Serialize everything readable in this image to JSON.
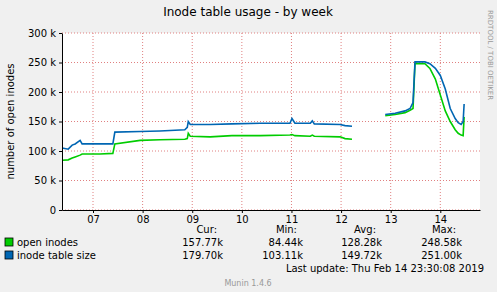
{
  "chart_data": {
    "type": "line",
    "title": "Inode table usage - by week",
    "y_label": "number of open inodes",
    "x": [
      6.38,
      6.5,
      6.58,
      6.64,
      6.74,
      6.78,
      7.14,
      7.4,
      7.44,
      7.95,
      8.35,
      8.85,
      8.9,
      8.92,
      8.96,
      9.36,
      9.8,
      10.37,
      10.97,
      11.01,
      11.07,
      11.38,
      11.42,
      11.46,
      11.98,
      12.08,
      12.22,
      12.5,
      12.89,
      13.09,
      13.29,
      13.39,
      13.45,
      13.49,
      13.69,
      13.79,
      13.9,
      14.0,
      14.1,
      14.2,
      14.3,
      14.36,
      14.42,
      14.46,
      14.48
    ],
    "xlim": [
      6.375,
      14.8
    ],
    "xticks": [
      {
        "value": 7,
        "label": "07"
      },
      {
        "value": 8,
        "label": "08"
      },
      {
        "value": 9,
        "label": "09"
      },
      10,
      11,
      12,
      13,
      14
    ],
    "ylim": [
      0,
      300000
    ],
    "yticks": [
      0,
      {
        "value": 50000,
        "label": "50 k"
      },
      {
        "value": 100000,
        "label": "100 k"
      },
      {
        "value": 150000,
        "label": "150 k"
      },
      {
        "value": 200000,
        "label": "200 k"
      },
      {
        "value": 250000,
        "label": "250 k"
      },
      {
        "value": 300000,
        "label": "300 k"
      }
    ],
    "grid": true,
    "legend": "bottom",
    "stat_columns": [
      "Cur:",
      "Min:",
      "Avg:",
      "Max:"
    ],
    "series": [
      {
        "name": "open inodes",
        "color": "#00cc00",
        "values": [
          84440,
          85000,
          88000,
          90000,
          93000,
          95000,
          95000,
          96000,
          112000,
          118000,
          119000,
          120000,
          121000,
          130000,
          125000,
          124000,
          126000,
          126000,
          127000,
          128000,
          126000,
          125000,
          127000,
          125000,
          124000,
          121000,
          120000,
          null,
          160000,
          162000,
          165000,
          169000,
          172000,
          248580,
          248000,
          240000,
          222000,
          195000,
          168000,
          150000,
          136000,
          130000,
          127000,
          126000,
          157770
        ],
        "stats": [
          "157.77k",
          "84.44k",
          "128.28k",
          "248.58k"
        ]
      },
      {
        "name": "inode table size",
        "color": "#0066b3",
        "values": [
          105000,
          103110,
          110000,
          112000,
          118000,
          112000,
          112000,
          112000,
          132000,
          133000,
          134000,
          136000,
          140000,
          150000,
          145000,
          145000,
          146000,
          147000,
          147000,
          155000,
          147000,
          147000,
          151000,
          146000,
          145000,
          143000,
          142000,
          null,
          162000,
          164000,
          168000,
          172000,
          182000,
          251000,
          251000,
          248000,
          240000,
          228000,
          205000,
          172000,
          155000,
          148000,
          145000,
          150000,
          179700
        ],
        "stats": [
          "179.70k",
          "103.11k",
          "149.72k",
          "251.00k"
        ]
      }
    ],
    "last_update": "Last update: Thu Feb 14 23:30:08 2019",
    "footer": "Munin 1.4.6",
    "watermark": "RRDTOOL / TOBI OETIKER"
  }
}
